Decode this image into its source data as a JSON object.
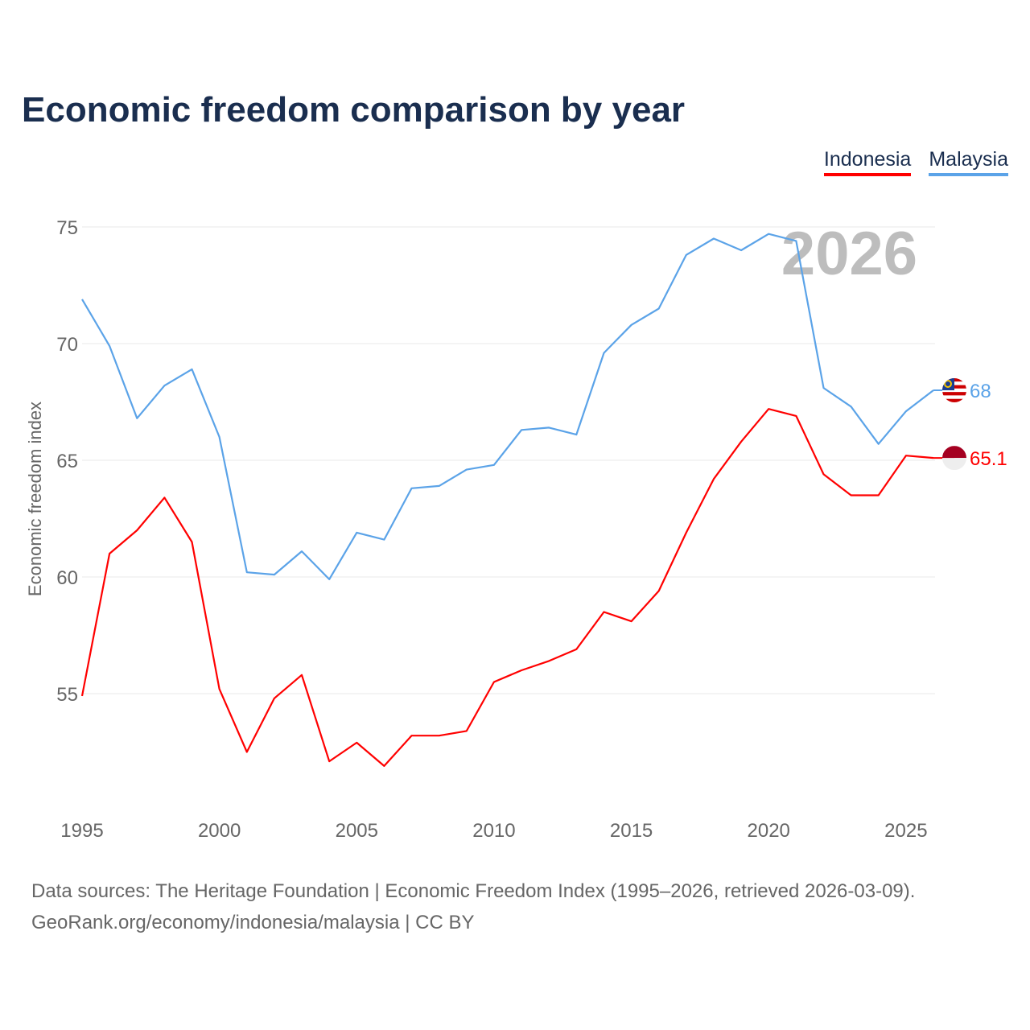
{
  "chart_data": {
    "type": "line",
    "title": "Economic freedom comparison by year",
    "xlabel": "",
    "ylabel": "Economic freedom index",
    "watermark_year": "2026",
    "xlim": [
      1995,
      2026
    ],
    "ylim": [
      50,
      76
    ],
    "x_ticks": [
      1995,
      2000,
      2005,
      2010,
      2015,
      2020,
      2025
    ],
    "y_ticks": [
      55,
      60,
      65,
      70,
      75
    ],
    "grid": true,
    "legend_position": "top-right",
    "x": [
      1995,
      1996,
      1997,
      1998,
      1999,
      2000,
      2001,
      2002,
      2003,
      2004,
      2005,
      2006,
      2007,
      2008,
      2009,
      2010,
      2011,
      2012,
      2013,
      2014,
      2015,
      2016,
      2017,
      2018,
      2019,
      2020,
      2021,
      2022,
      2023,
      2024,
      2025,
      2026
    ],
    "series": [
      {
        "name": "Indonesia",
        "color": "#ff0000",
        "end_label": "65.1",
        "flag": "indonesia-flag",
        "values": [
          54.9,
          61.0,
          62.0,
          63.4,
          61.5,
          55.2,
          52.5,
          54.8,
          55.8,
          52.1,
          52.9,
          51.9,
          53.2,
          53.2,
          53.4,
          55.5,
          56.0,
          56.4,
          56.9,
          58.5,
          58.1,
          59.4,
          61.9,
          64.2,
          65.8,
          67.2,
          66.9,
          64.4,
          63.5,
          63.5,
          65.2,
          65.1
        ]
      },
      {
        "name": "Malaysia",
        "color": "#5ba3e8",
        "end_label": "68",
        "flag": "malaysia-flag",
        "values": [
          71.9,
          69.9,
          66.8,
          68.2,
          68.9,
          66.0,
          60.2,
          60.1,
          61.1,
          59.9,
          61.9,
          61.6,
          63.8,
          63.9,
          64.6,
          64.8,
          66.3,
          66.4,
          66.1,
          69.6,
          70.8,
          71.5,
          73.8,
          74.5,
          74.0,
          74.7,
          74.4,
          68.1,
          67.3,
          65.7,
          67.1,
          68.0
        ]
      }
    ]
  },
  "footer": {
    "line1": "Data sources: The Heritage Foundation | Economic Freedom Index (1995–2026, retrieved 2026-03-09).",
    "line2": "GeoRank.org/economy/indonesia/malaysia | CC BY"
  }
}
